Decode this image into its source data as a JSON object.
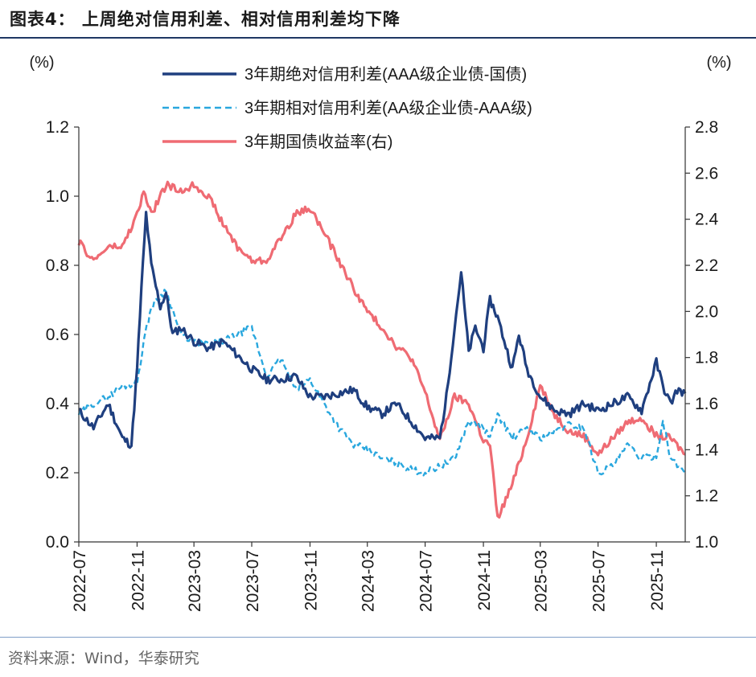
{
  "figure": {
    "title": "图表4：  上周绝对信用利差、相对信用利差均下降",
    "source": "资料来源：Wind，华泰研究"
  },
  "colors": {
    "absolute_spread": "#1f3f7f",
    "relative_spread": "#29a7de",
    "treasury_yield": "#ef6b73",
    "rule": "#1f3864"
  },
  "chart_data": {
    "type": "line",
    "title": "",
    "xlabel": "",
    "ylabel": "(%)",
    "ylabel_right": "(%)",
    "ylim": [
      0.0,
      1.2
    ],
    "ylim_right": [
      1.0,
      2.8
    ],
    "yticks": [
      "0.0",
      "0.2",
      "0.4",
      "0.6",
      "0.8",
      "1.0",
      "1.2"
    ],
    "yticks_right": [
      "1.0",
      "1.2",
      "1.4",
      "1.6",
      "1.8",
      "2.0",
      "2.2",
      "2.4",
      "2.6",
      "2.8"
    ],
    "xrange": [
      "2022-07",
      "2026-01"
    ],
    "xticks": [
      "2022-07",
      "2022-11",
      "2023-03",
      "2023-07",
      "2023-11",
      "2024-03",
      "2024-07",
      "2024-11",
      "2025-03",
      "2025-07",
      "2025-11"
    ],
    "legend_position": "top-center",
    "series": [
      {
        "name": "3年期绝对信用利差(AAA级企业债-国债)",
        "axis": "left",
        "style": "solid",
        "points": [
          [
            "2022-07",
            0.38
          ],
          [
            "2022-08",
            0.33
          ],
          [
            "2022-09",
            0.4
          ],
          [
            "2022-10",
            0.3
          ],
          [
            "2022-10-20",
            0.28
          ],
          [
            "2022-11",
            0.5
          ],
          [
            "2022-11-10",
            0.73
          ],
          [
            "2022-11-20",
            0.95
          ],
          [
            "2022-12",
            0.8
          ],
          [
            "2022-12-20",
            0.68
          ],
          [
            "2023-01",
            0.72
          ],
          [
            "2023-01-15",
            0.6
          ],
          [
            "2023-02",
            0.62
          ],
          [
            "2023-03",
            0.58
          ],
          [
            "2023-04",
            0.56
          ],
          [
            "2023-05",
            0.58
          ],
          [
            "2023-06",
            0.54
          ],
          [
            "2023-07",
            0.5
          ],
          [
            "2023-08",
            0.47
          ],
          [
            "2023-09",
            0.47
          ],
          [
            "2023-10",
            0.48
          ],
          [
            "2023-11",
            0.42
          ],
          [
            "2023-12",
            0.42
          ],
          [
            "2024-01",
            0.43
          ],
          [
            "2024-02",
            0.44
          ],
          [
            "2024-03",
            0.39
          ],
          [
            "2024-04",
            0.37
          ],
          [
            "2024-05",
            0.4
          ],
          [
            "2024-06",
            0.35
          ],
          [
            "2024-07",
            0.3
          ],
          [
            "2024-08",
            0.3
          ],
          [
            "2024-08-15",
            0.42
          ],
          [
            "2024-09",
            0.62
          ],
          [
            "2024-09-15",
            0.78
          ],
          [
            "2024-10",
            0.55
          ],
          [
            "2024-10-15",
            0.62
          ],
          [
            "2024-11",
            0.56
          ],
          [
            "2024-11-15",
            0.7
          ],
          [
            "2024-12",
            0.65
          ],
          [
            "2025-01",
            0.5
          ],
          [
            "2025-01-15",
            0.6
          ],
          [
            "2025-02",
            0.5
          ],
          [
            "2025-03",
            0.42
          ],
          [
            "2025-04",
            0.38
          ],
          [
            "2025-05",
            0.37
          ],
          [
            "2025-06",
            0.4
          ],
          [
            "2025-07",
            0.38
          ],
          [
            "2025-08",
            0.4
          ],
          [
            "2025-09",
            0.42
          ],
          [
            "2025-10",
            0.38
          ],
          [
            "2025-11",
            0.52
          ],
          [
            "2025-11-15",
            0.45
          ],
          [
            "2025-12",
            0.4
          ],
          [
            "2025-12-15",
            0.44
          ],
          [
            "2026-01",
            0.43
          ]
        ]
      },
      {
        "name": "3年期相对信用利差(AA级企业债-AAA级)",
        "axis": "left",
        "style": "dashed",
        "points": [
          [
            "2022-07",
            0.37
          ],
          [
            "2022-08",
            0.4
          ],
          [
            "2022-09",
            0.42
          ],
          [
            "2022-10",
            0.45
          ],
          [
            "2022-11",
            0.46
          ],
          [
            "2022-11-15",
            0.58
          ],
          [
            "2022-12",
            0.68
          ],
          [
            "2023-01",
            0.73
          ],
          [
            "2023-02",
            0.6
          ],
          [
            "2023-03",
            0.58
          ],
          [
            "2023-04",
            0.57
          ],
          [
            "2023-05",
            0.58
          ],
          [
            "2023-06",
            0.6
          ],
          [
            "2023-07",
            0.62
          ],
          [
            "2023-08",
            0.48
          ],
          [
            "2023-09",
            0.53
          ],
          [
            "2023-10",
            0.44
          ],
          [
            "2023-11",
            0.47
          ],
          [
            "2023-12",
            0.4
          ],
          [
            "2024-01",
            0.33
          ],
          [
            "2024-02",
            0.28
          ],
          [
            "2024-03",
            0.27
          ],
          [
            "2024-04",
            0.24
          ],
          [
            "2024-05",
            0.23
          ],
          [
            "2024-06",
            0.21
          ],
          [
            "2024-07",
            0.2
          ],
          [
            "2024-08",
            0.22
          ],
          [
            "2024-09",
            0.24
          ],
          [
            "2024-10",
            0.35
          ],
          [
            "2024-11",
            0.33
          ],
          [
            "2024-11-15",
            0.3
          ],
          [
            "2024-12",
            0.37
          ],
          [
            "2025-01",
            0.3
          ],
          [
            "2025-02",
            0.33
          ],
          [
            "2025-03",
            0.3
          ],
          [
            "2025-04",
            0.32
          ],
          [
            "2025-05",
            0.34
          ],
          [
            "2025-06",
            0.33
          ],
          [
            "2025-07",
            0.2
          ],
          [
            "2025-08",
            0.22
          ],
          [
            "2025-09",
            0.28
          ],
          [
            "2025-10",
            0.24
          ],
          [
            "2025-11",
            0.25
          ],
          [
            "2025-11-15",
            0.35
          ],
          [
            "2025-12",
            0.24
          ],
          [
            "2026-01",
            0.2
          ]
        ]
      },
      {
        "name": "3年期国债收益率(右)",
        "axis": "right",
        "style": "solid",
        "points": [
          [
            "2022-07",
            2.3
          ],
          [
            "2022-08",
            2.22
          ],
          [
            "2022-09",
            2.28
          ],
          [
            "2022-10",
            2.28
          ],
          [
            "2022-11",
            2.42
          ],
          [
            "2022-11-15",
            2.52
          ],
          [
            "2022-12",
            2.42
          ],
          [
            "2023-01",
            2.55
          ],
          [
            "2023-02",
            2.52
          ],
          [
            "2023-03",
            2.55
          ],
          [
            "2023-04",
            2.5
          ],
          [
            "2023-05",
            2.38
          ],
          [
            "2023-06",
            2.28
          ],
          [
            "2023-07",
            2.22
          ],
          [
            "2023-08",
            2.22
          ],
          [
            "2023-09",
            2.32
          ],
          [
            "2023-10",
            2.42
          ],
          [
            "2023-11",
            2.45
          ],
          [
            "2023-12",
            2.34
          ],
          [
            "2024-01",
            2.22
          ],
          [
            "2024-02",
            2.1
          ],
          [
            "2024-03",
            2.0
          ],
          [
            "2024-04",
            1.93
          ],
          [
            "2024-05",
            1.85
          ],
          [
            "2024-06",
            1.8
          ],
          [
            "2024-07",
            1.65
          ],
          [
            "2024-08",
            1.44
          ],
          [
            "2024-09",
            1.63
          ],
          [
            "2024-10",
            1.6
          ],
          [
            "2024-11",
            1.44
          ],
          [
            "2024-11-15",
            1.42
          ],
          [
            "2024-12",
            1.1
          ],
          [
            "2025-01",
            1.25
          ],
          [
            "2025-02",
            1.45
          ],
          [
            "2025-03",
            1.68
          ],
          [
            "2025-04",
            1.55
          ],
          [
            "2025-05",
            1.48
          ],
          [
            "2025-06",
            1.46
          ],
          [
            "2025-07",
            1.38
          ],
          [
            "2025-08",
            1.45
          ],
          [
            "2025-09",
            1.52
          ],
          [
            "2025-10",
            1.54
          ],
          [
            "2025-11",
            1.46
          ],
          [
            "2025-12",
            1.45
          ],
          [
            "2026-01",
            1.38
          ]
        ]
      }
    ]
  }
}
